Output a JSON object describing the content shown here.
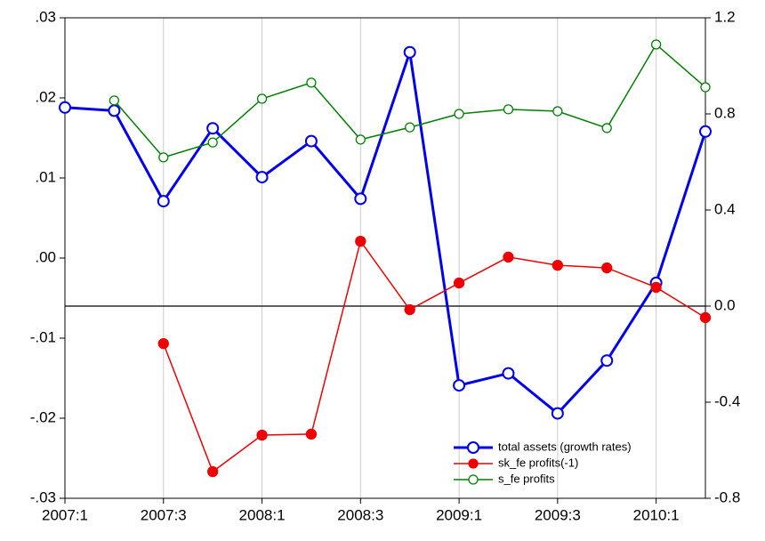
{
  "chart_data": {
    "type": "line",
    "categories": [
      "2007:1",
      null,
      "2007:3",
      null,
      "2008:1",
      null,
      "2008:3",
      null,
      "2009:1",
      null,
      "2009:3",
      null,
      "2010:1",
      null
    ],
    "series": [
      {
        "name": "total assets (growth rates)",
        "color": "#0000ee",
        "axis": "y",
        "marker": "open",
        "values": [
          0.0188,
          0.0184,
          0.0071,
          0.0162,
          0.0101,
          0.0146,
          0.0074,
          0.0257,
          -0.0159,
          -0.0144,
          -0.0194,
          -0.0128,
          -0.0031,
          0.0158
        ]
      },
      {
        "name": "sk_fe profits(-1)",
        "color": "#ee0000",
        "axis": "y2",
        "marker": "filled",
        "values": [
          null,
          null,
          -0.156,
          -0.689,
          -0.537,
          -0.533,
          0.27,
          -0.015,
          0.096,
          0.204,
          0.17,
          0.159,
          0.078,
          -0.048
        ]
      },
      {
        "name": "s_fe profits",
        "color": "#008000",
        "axis": "y2",
        "marker": "open",
        "values": [
          null,
          0.856,
          0.619,
          0.681,
          0.863,
          0.93,
          0.693,
          0.744,
          0.8,
          0.819,
          0.811,
          0.741,
          1.089,
          0.911
        ]
      }
    ],
    "ylim": [
      -0.03,
      0.03
    ],
    "yticks": [
      {
        "value": 0.03,
        "label": ".03"
      },
      {
        "value": 0.02,
        "label": ".02"
      },
      {
        "value": 0.01,
        "label": ".01"
      },
      {
        "value": 0,
        "label": ".00"
      },
      {
        "value": -0.01,
        "label": "-.01"
      },
      {
        "value": -0.02,
        "label": "-.02"
      },
      {
        "value": -0.03,
        "label": "-.03"
      }
    ],
    "y2lim": [
      -0.8,
      1.2
    ],
    "y2ticks": [
      1.2,
      0.8,
      0.4,
      {
        "value": 0,
        "label": "0.0"
      },
      -0.4,
      -0.8
    ],
    "y2_reference_line": 0,
    "xgrid": true,
    "legend": "bottom-right"
  }
}
